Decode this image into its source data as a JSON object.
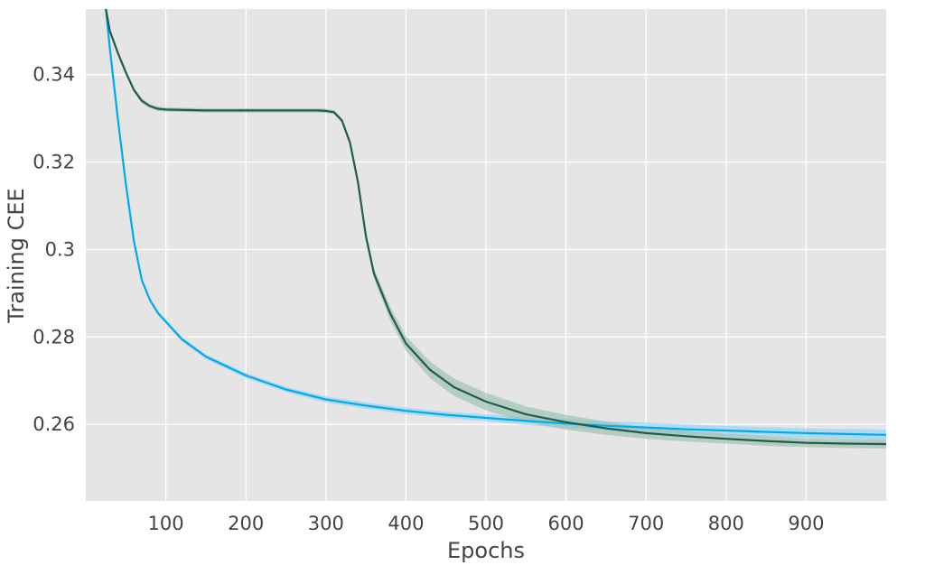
{
  "chart_data": {
    "type": "line",
    "title": "",
    "xlabel": "Epochs",
    "ylabel": "Training CEE",
    "xlim": [
      0,
      1000
    ],
    "ylim": [
      0.2425,
      0.355
    ],
    "x_ticks": [
      100,
      200,
      300,
      400,
      500,
      600,
      700,
      800,
      900
    ],
    "x_tick_labels": [
      "100",
      "200",
      "300",
      "400",
      "500",
      "600",
      "700",
      "800",
      "900"
    ],
    "y_ticks": [
      0.26,
      0.28,
      0.3,
      0.32,
      0.34
    ],
    "y_tick_labels": [
      "0.26",
      "0.28",
      "0.3",
      "0.32",
      "0.34"
    ],
    "grid": true,
    "legend": "none",
    "colors": {
      "background": "#e5e5e5",
      "grid": "#ffffff"
    },
    "series": [
      {
        "color": "#00aaee",
        "band_color": "#8fd4f2",
        "x": [
          25,
          30,
          40,
          50,
          60,
          70,
          80,
          90,
          100,
          120,
          150,
          200,
          250,
          300,
          350,
          400,
          450,
          500,
          550,
          600,
          650,
          700,
          750,
          800,
          850,
          900,
          950,
          1000
        ],
        "y": [
          0.355,
          0.346,
          0.33,
          0.315,
          0.302,
          0.293,
          0.2885,
          0.2855,
          0.2835,
          0.2795,
          0.2755,
          0.2712,
          0.268,
          0.2657,
          0.2643,
          0.2631,
          0.2622,
          0.2615,
          0.2608,
          0.2602,
          0.2597,
          0.2593,
          0.2589,
          0.2586,
          0.2583,
          0.258,
          0.2578,
          0.2576
        ],
        "y_lower": [
          0.3545,
          0.3455,
          0.3295,
          0.3145,
          0.3015,
          0.2925,
          0.288,
          0.285,
          0.283,
          0.279,
          0.275,
          0.2706,
          0.2674,
          0.265,
          0.2636,
          0.2624,
          0.2615,
          0.2607,
          0.2599,
          0.2592,
          0.2587,
          0.2582,
          0.2578,
          0.2575,
          0.2572,
          0.2569,
          0.2566,
          0.2564
        ],
        "y_upper": [
          0.3555,
          0.3465,
          0.3305,
          0.3155,
          0.3025,
          0.2935,
          0.289,
          0.286,
          0.284,
          0.28,
          0.276,
          0.2718,
          0.2686,
          0.2664,
          0.265,
          0.2638,
          0.2629,
          0.2623,
          0.2617,
          0.2612,
          0.2607,
          0.2604,
          0.26,
          0.2597,
          0.2594,
          0.2591,
          0.259,
          0.2588
        ]
      },
      {
        "color": "#1f5c4a",
        "band_color": "#9bbfae",
        "x": [
          25,
          30,
          40,
          50,
          60,
          70,
          80,
          90,
          100,
          150,
          200,
          250,
          290,
          300,
          310,
          320,
          330,
          340,
          350,
          360,
          380,
          400,
          430,
          460,
          500,
          550,
          600,
          650,
          700,
          750,
          800,
          850,
          900,
          950,
          1000
        ],
        "y": [
          0.355,
          0.35,
          0.345,
          0.3405,
          0.3365,
          0.334,
          0.3328,
          0.3322,
          0.332,
          0.3318,
          0.3318,
          0.3318,
          0.3318,
          0.3317,
          0.3314,
          0.3295,
          0.3245,
          0.3155,
          0.303,
          0.2945,
          0.2855,
          0.2785,
          0.2725,
          0.2685,
          0.2652,
          0.2623,
          0.2605,
          0.2591,
          0.258,
          0.2573,
          0.2567,
          0.2562,
          0.2558,
          0.2556,
          0.2555
        ],
        "y_lower": [
          0.3545,
          0.3495,
          0.3445,
          0.34,
          0.336,
          0.3335,
          0.3323,
          0.3317,
          0.3315,
          0.3313,
          0.3313,
          0.3313,
          0.3313,
          0.3312,
          0.3309,
          0.329,
          0.3238,
          0.3147,
          0.302,
          0.2933,
          0.284,
          0.2768,
          0.2706,
          0.2665,
          0.2632,
          0.2605,
          0.2588,
          0.2576,
          0.2567,
          0.2561,
          0.2556,
          0.2551,
          0.2548,
          0.2546,
          0.2545
        ],
        "y_upper": [
          0.3555,
          0.3505,
          0.3455,
          0.341,
          0.337,
          0.3345,
          0.3333,
          0.3327,
          0.3325,
          0.3323,
          0.3323,
          0.3323,
          0.3323,
          0.3322,
          0.3319,
          0.33,
          0.3252,
          0.3163,
          0.304,
          0.2957,
          0.287,
          0.2802,
          0.2744,
          0.2705,
          0.2672,
          0.2641,
          0.2622,
          0.2606,
          0.2593,
          0.2585,
          0.2578,
          0.2573,
          0.2568,
          0.2566,
          0.2565
        ]
      }
    ]
  }
}
